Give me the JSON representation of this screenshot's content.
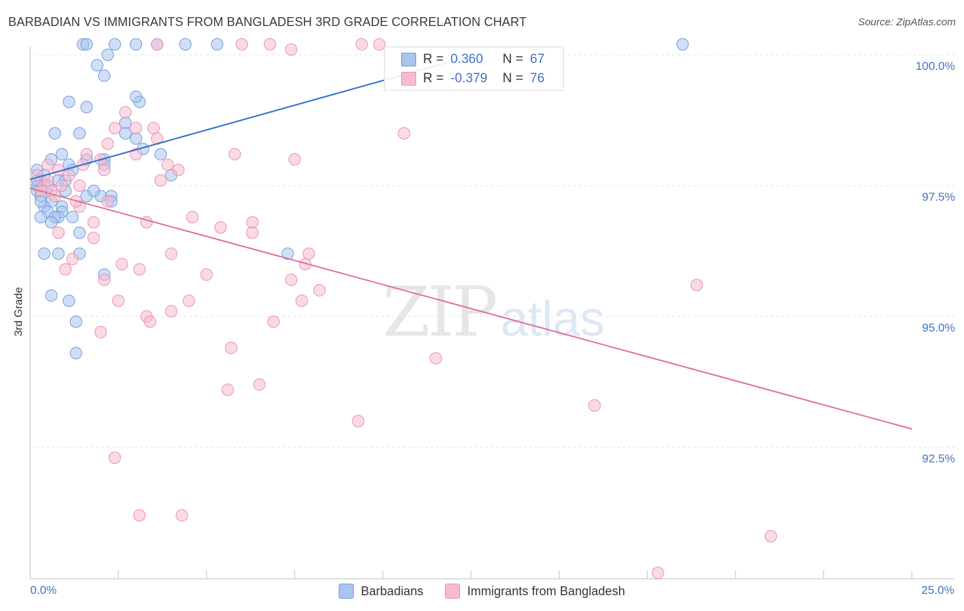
{
  "title": "BARBADIAN VS IMMIGRANTS FROM BANGLADESH 3RD GRADE CORRELATION CHART",
  "source": "Source: ZipAtlas.com",
  "watermark": {
    "zip": "ZIP",
    "atlas": "atlas"
  },
  "colors": {
    "blue_fill": "#a9c4ee",
    "blue_stroke": "#6f9bd9",
    "blue_line": "#2f6fcc",
    "pink_fill": "#f5bcd0",
    "pink_stroke": "#ea8fb0",
    "pink_line": "#e0709a",
    "tick_text": "#4472c4",
    "grid": "#e3e3e3"
  },
  "legend_top": [
    {
      "r_label": "R =",
      "r_value": "0.360",
      "n_label": "N =",
      "n_value": "67",
      "color": "#a9c4ee"
    },
    {
      "r_label": "R =",
      "r_value": "-0.379",
      "n_label": "N =",
      "n_value": "76",
      "color": "#f5bcd0"
    }
  ],
  "legend_bottom": [
    {
      "label": "Barbadians",
      "color": "#a9c4ee"
    },
    {
      "label": "Immigrants from Bangladesh",
      "color": "#f5bcd0"
    }
  ],
  "chart_data": {
    "type": "scatter",
    "title": "BARBADIAN VS IMMIGRANTS FROM BANGLADESH 3RD GRADE CORRELATION CHART",
    "xlabel": "",
    "ylabel": "3rd Grade",
    "xlim": [
      0,
      25
    ],
    "ylim": [
      90.0,
      100.3
    ],
    "x_tick_labels": {
      "left": "0.0%",
      "right": "25.0%"
    },
    "y_ticks": [
      {
        "value": 100.0,
        "label": "100.0%"
      },
      {
        "value": 97.5,
        "label": "97.5%"
      },
      {
        "value": 95.0,
        "label": "95.0%"
      },
      {
        "value": 92.5,
        "label": "92.5%"
      }
    ],
    "grid": true,
    "series": [
      {
        "name": "Barbadians",
        "r": 0.36,
        "n": 67,
        "trend": {
          "x": [
            0.0,
            12.5
          ],
          "y": [
            97.62,
            99.98
          ]
        },
        "points": [
          [
            1.5,
            100.2
          ],
          [
            1.6,
            100.2
          ],
          [
            2.4,
            100.2
          ],
          [
            3.0,
            100.2
          ],
          [
            3.6,
            100.2
          ],
          [
            4.4,
            100.2
          ],
          [
            5.3,
            100.2
          ],
          [
            18.5,
            100.2
          ],
          [
            2.2,
            100.0
          ],
          [
            1.9,
            99.8
          ],
          [
            2.1,
            99.6
          ],
          [
            1.1,
            99.1
          ],
          [
            1.6,
            99.0
          ],
          [
            3.1,
            99.1
          ],
          [
            3.0,
            99.2
          ],
          [
            2.7,
            98.7
          ],
          [
            2.7,
            98.5
          ],
          [
            0.7,
            98.5
          ],
          [
            1.4,
            98.5
          ],
          [
            3.2,
            98.2
          ],
          [
            3.7,
            98.1
          ],
          [
            0.9,
            98.1
          ],
          [
            0.6,
            98.0
          ],
          [
            1.6,
            98.0
          ],
          [
            2.1,
            98.0
          ],
          [
            2.1,
            97.9
          ],
          [
            1.1,
            97.9
          ],
          [
            0.2,
            97.8
          ],
          [
            1.2,
            97.8
          ],
          [
            4.0,
            97.7
          ],
          [
            0.8,
            97.6
          ],
          [
            0.3,
            97.6
          ],
          [
            0.2,
            97.5
          ],
          [
            0.2,
            97.4
          ],
          [
            1.0,
            97.4
          ],
          [
            2.0,
            97.3
          ],
          [
            2.3,
            97.3
          ],
          [
            1.6,
            97.3
          ],
          [
            0.3,
            97.3
          ],
          [
            0.6,
            97.2
          ],
          [
            0.4,
            97.1
          ],
          [
            0.9,
            97.1
          ],
          [
            0.5,
            97.0
          ],
          [
            0.9,
            97.0
          ],
          [
            0.3,
            96.9
          ],
          [
            1.2,
            96.9
          ],
          [
            0.8,
            96.9
          ],
          [
            0.7,
            96.9
          ],
          [
            0.6,
            96.8
          ],
          [
            1.4,
            96.6
          ],
          [
            0.4,
            96.2
          ],
          [
            0.8,
            96.2
          ],
          [
            1.4,
            96.2
          ],
          [
            7.3,
            96.2
          ],
          [
            2.1,
            95.8
          ],
          [
            0.6,
            95.4
          ],
          [
            1.1,
            95.3
          ],
          [
            1.3,
            94.9
          ],
          [
            1.3,
            94.3
          ],
          [
            0.2,
            97.6
          ],
          [
            0.3,
            97.2
          ],
          [
            0.5,
            97.5
          ],
          [
            1.8,
            97.4
          ],
          [
            2.3,
            97.2
          ],
          [
            3.0,
            98.4
          ],
          [
            0.4,
            97.7
          ],
          [
            1.0,
            97.6
          ]
        ]
      },
      {
        "name": "Immigrants from Bangladesh",
        "r": -0.379,
        "n": 76,
        "trend": {
          "x": [
            0.0,
            25.0
          ],
          "y": [
            97.45,
            92.85
          ]
        },
        "points": [
          [
            3.6,
            100.2
          ],
          [
            6.0,
            100.2
          ],
          [
            6.8,
            100.2
          ],
          [
            9.4,
            100.2
          ],
          [
            9.9,
            100.2
          ],
          [
            7.4,
            100.1
          ],
          [
            2.7,
            98.9
          ],
          [
            2.4,
            98.6
          ],
          [
            3.0,
            98.6
          ],
          [
            3.5,
            98.6
          ],
          [
            3.6,
            98.4
          ],
          [
            10.6,
            98.5
          ],
          [
            5.8,
            98.1
          ],
          [
            7.5,
            98.0
          ],
          [
            3.0,
            98.1
          ],
          [
            2.0,
            98.0
          ],
          [
            1.5,
            97.9
          ],
          [
            2.1,
            97.8
          ],
          [
            4.2,
            97.8
          ],
          [
            1.1,
            97.7
          ],
          [
            0.5,
            97.9
          ],
          [
            3.7,
            97.6
          ],
          [
            0.2,
            97.7
          ],
          [
            0.4,
            97.5
          ],
          [
            0.6,
            97.4
          ],
          [
            0.9,
            97.5
          ],
          [
            1.4,
            97.5
          ],
          [
            2.2,
            97.2
          ],
          [
            1.4,
            97.1
          ],
          [
            4.6,
            96.9
          ],
          [
            3.3,
            96.8
          ],
          [
            1.8,
            96.8
          ],
          [
            5.4,
            96.7
          ],
          [
            6.3,
            96.8
          ],
          [
            6.3,
            96.6
          ],
          [
            0.8,
            96.6
          ],
          [
            1.8,
            96.5
          ],
          [
            4.0,
            96.2
          ],
          [
            1.2,
            96.1
          ],
          [
            2.6,
            96.0
          ],
          [
            3.1,
            95.9
          ],
          [
            7.8,
            96.0
          ],
          [
            1.0,
            95.9
          ],
          [
            7.9,
            96.2
          ],
          [
            2.1,
            95.7
          ],
          [
            5.0,
            95.8
          ],
          [
            7.4,
            95.7
          ],
          [
            18.9,
            95.6
          ],
          [
            2.5,
            95.3
          ],
          [
            4.5,
            95.3
          ],
          [
            7.7,
            95.3
          ],
          [
            8.2,
            95.5
          ],
          [
            4.0,
            95.1
          ],
          [
            3.3,
            95.0
          ],
          [
            3.4,
            94.9
          ],
          [
            6.9,
            94.9
          ],
          [
            2.0,
            94.7
          ],
          [
            5.7,
            94.4
          ],
          [
            11.5,
            94.2
          ],
          [
            5.6,
            93.6
          ],
          [
            6.5,
            93.7
          ],
          [
            9.3,
            93.0
          ],
          [
            16.0,
            93.3
          ],
          [
            2.4,
            92.3
          ],
          [
            3.1,
            91.2
          ],
          [
            4.3,
            91.2
          ],
          [
            21.0,
            90.8
          ],
          [
            17.8,
            90.1
          ],
          [
            0.5,
            97.6
          ],
          [
            0.7,
            97.3
          ],
          [
            1.6,
            98.1
          ],
          [
            2.2,
            98.3
          ],
          [
            3.9,
            97.9
          ],
          [
            1.3,
            97.2
          ],
          [
            0.3,
            97.4
          ],
          [
            0.8,
            97.8
          ]
        ]
      }
    ]
  }
}
